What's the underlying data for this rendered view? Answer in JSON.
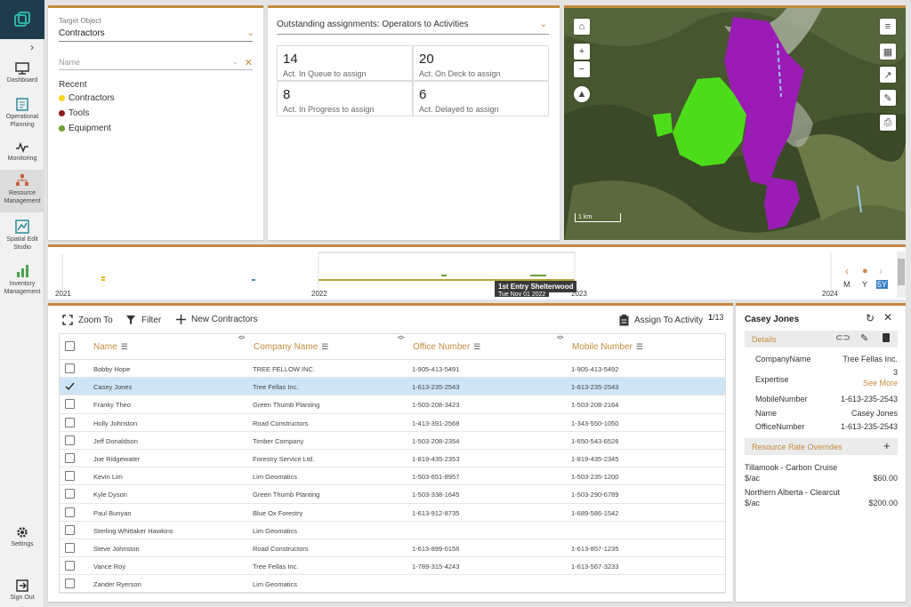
{
  "sidebar": {
    "items": [
      {
        "label": "Dashboard",
        "icon": "monitor-icon"
      },
      {
        "label": "Operational Planning",
        "icon": "clipboard-icon"
      },
      {
        "label": "Monitoring",
        "icon": "pulse-icon"
      },
      {
        "label": "Resource Management",
        "icon": "org-chart-icon"
      },
      {
        "label": "Spatial Edit Studio",
        "icon": "map-edit-icon"
      },
      {
        "label": "Inventory Management",
        "icon": "bar-chart-icon"
      }
    ],
    "settings_label": "Settings",
    "signout_label": "Sign Out"
  },
  "target": {
    "label": "Target Object",
    "value": "Contractors",
    "name_placeholder": "Name",
    "recent_heading": "Recent",
    "recent": [
      {
        "label": "Contractors",
        "color": "#f2d61c"
      },
      {
        "label": "Tools",
        "color": "#8b1d1d"
      },
      {
        "label": "Equipment",
        "color": "#6ba030"
      }
    ]
  },
  "outstanding": {
    "select": "Outstanding assignments: Operators to Activities",
    "stats": [
      {
        "value": "14",
        "label": "Act. In Queue to assign"
      },
      {
        "value": "20",
        "label": "Act. On Deck to assign"
      },
      {
        "value": "8",
        "label": "Act. In Progress to assign"
      },
      {
        "value": "6",
        "label": "Act. Delayed to assign"
      }
    ]
  },
  "map": {
    "scale": "1 km"
  },
  "timeline": {
    "years": [
      "2021",
      "2022",
      "2023",
      "2024"
    ],
    "tooltip_title": "1st Entry Shelterwood",
    "tooltip_date": "Tue Nov 01 2022",
    "modes": [
      "M",
      "Y",
      "5Y"
    ]
  },
  "toolbar": {
    "zoom": "Zoom To",
    "filter": "Filter",
    "new": "New Contractors",
    "assign": "Assign To Activity",
    "page_current": "1",
    "page_total": "/13"
  },
  "table": {
    "headers": [
      "Name",
      "Company Name",
      "Office Number",
      "Mobile Number"
    ],
    "rows": [
      {
        "name": "Bobby Hope",
        "company": "TREE FELLOW INC.",
        "office": "1-905-413-5491",
        "mobile": "1-905-413-5492",
        "checked": false
      },
      {
        "name": "Casey Jones",
        "company": "Tree Fellas Inc.",
        "office": "1-613-235-2543",
        "mobile": "1-613-235-2543",
        "checked": true
      },
      {
        "name": "Franky Theo",
        "company": "Green Thumb Planting",
        "office": "1-503-208-3423",
        "mobile": "1-503-208-2164",
        "checked": false
      },
      {
        "name": "Holly Johnston",
        "company": "Road Constructors",
        "office": "1-413-391-2568",
        "mobile": "1-343-550-1050",
        "checked": false
      },
      {
        "name": "Jeff Donaldson",
        "company": "Timber Company",
        "office": "1-503-208-2354",
        "mobile": "1-650-543-6526",
        "checked": false
      },
      {
        "name": "Joe Ridgewater",
        "company": "Forestry Service Ltd.",
        "office": "1-819-435-2353",
        "mobile": "1-819-435-2345",
        "checked": false
      },
      {
        "name": "Kevin Lim",
        "company": "Lim Geomatics",
        "office": "1-503-651-8957",
        "mobile": "1-503-235-1200",
        "checked": false
      },
      {
        "name": "Kyle Dyson",
        "company": "Green Thumb Planting",
        "office": "1-503-338-1645",
        "mobile": "1-503-290-6789",
        "checked": false
      },
      {
        "name": "Paul Bunyan",
        "company": "Blue Ox Forestry",
        "office": "1-613-912-8735",
        "mobile": "1-689-586-1542",
        "checked": false
      },
      {
        "name": "Sterling Whittaker Hawkins",
        "company": "Lim Geomatics",
        "office": "",
        "mobile": "",
        "checked": false
      },
      {
        "name": "Steve Johnston",
        "company": "Road Constructors",
        "office": "1-613-899-0156",
        "mobile": "1-613-857-1235",
        "checked": false
      },
      {
        "name": "Vance Roy",
        "company": "Tree Fellas Inc.",
        "office": "1-789-315-4243",
        "mobile": "1-613-567-3233",
        "checked": false
      },
      {
        "name": "Zander Ryerson",
        "company": "Lim Geomatics",
        "office": "",
        "mobile": "",
        "checked": false
      }
    ]
  },
  "detail": {
    "name": "Casey Jones",
    "details_heading": "Details",
    "fields": [
      {
        "key": "CompanyName",
        "value": "Tree Fellas Inc."
      },
      {
        "key": "Expertise",
        "value": "3"
      },
      {
        "key": "MobileNumber",
        "value": "1-613-235-2543"
      },
      {
        "key": "Name",
        "value": "Casey Jones"
      },
      {
        "key": "OfficeNumber",
        "value": "1-613-235-2543"
      }
    ],
    "see_more": "See More",
    "overrides_heading": "Resource Rate Overrides",
    "rates": [
      {
        "name": "Tillamook - Carbon Cruise",
        "unit": "$/ac",
        "amount": "$60.00"
      },
      {
        "name": "Northern Alberta - Clearcut",
        "unit": "$/ac",
        "amount": "$200.00"
      }
    ]
  },
  "colors": {
    "accent": "#c48a3f",
    "selection": "#cfe5f6",
    "logo_bg": "#1f3c4d"
  }
}
